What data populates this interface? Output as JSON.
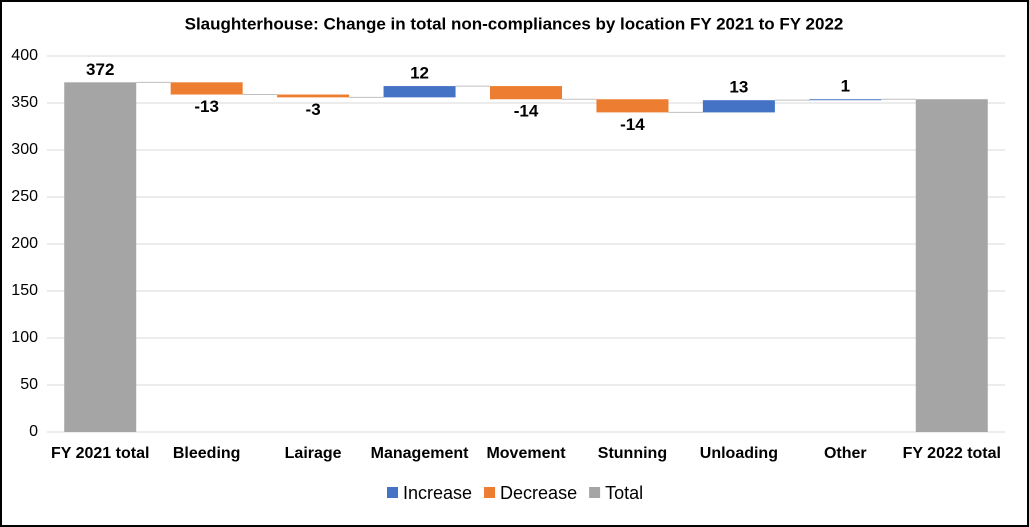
{
  "chart_data": {
    "type": "waterfall",
    "title": "Slaughterhouse: Change in total non-compliances by location FY 2021 to FY 2022",
    "categories": [
      "FY 2021 total",
      "Bleeding",
      "Lairage",
      "Management",
      "Movement",
      "Stunning",
      "Unloading",
      "Other",
      "FY 2022 total"
    ],
    "values": [
      372,
      -13,
      -3,
      12,
      -14,
      -14,
      13,
      1,
      354
    ],
    "measures": [
      "total",
      "relative",
      "relative",
      "relative",
      "relative",
      "relative",
      "relative",
      "relative",
      "total"
    ],
    "show_label": [
      true,
      true,
      true,
      true,
      true,
      true,
      true,
      true,
      false
    ],
    "legend": [
      {
        "name": "Increase",
        "color": "#4472c4"
      },
      {
        "name": "Decrease",
        "color": "#ed7d31"
      },
      {
        "name": "Total",
        "color": "#a5a5a5"
      }
    ],
    "ylim": [
      0,
      400
    ],
    "yticks": [
      0,
      50,
      100,
      150,
      200,
      250,
      300,
      350,
      400
    ],
    "grid": true
  }
}
